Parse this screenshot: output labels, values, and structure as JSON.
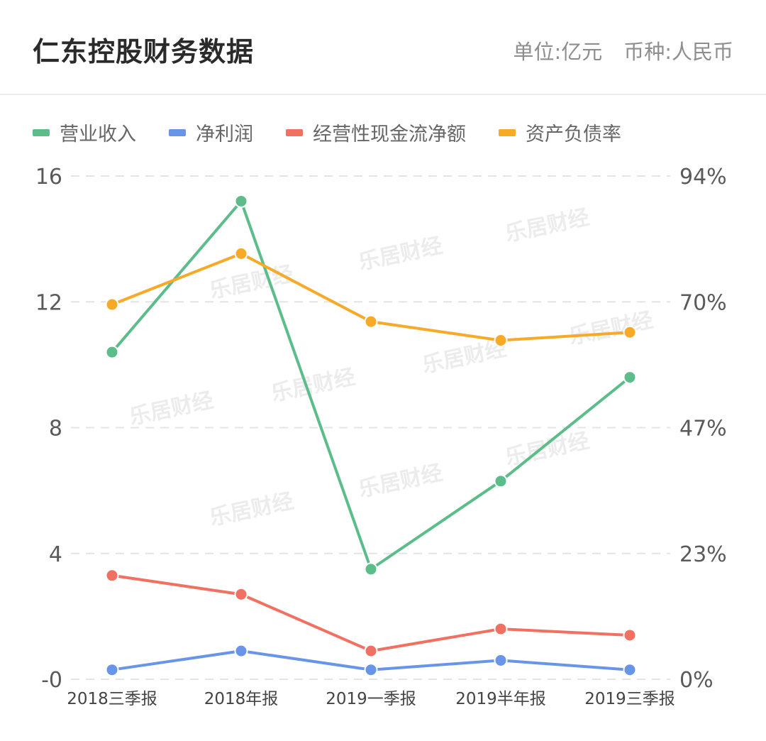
{
  "header": {
    "title": "仁东控股财务数据",
    "unit": "单位:亿元",
    "currency": "币种:人民币"
  },
  "watermark_text": "乐居财经",
  "chart_data": {
    "type": "line",
    "categories": [
      "2018三季报",
      "2018年报",
      "2019一季报",
      "2019半年报",
      "2019三季报"
    ],
    "y_left": {
      "ticks": [
        "-0",
        "4",
        "8",
        "12",
        "16"
      ],
      "ylim": [
        0,
        16
      ]
    },
    "y_right": {
      "ticks": [
        "0%",
        "23%",
        "47%",
        "70%",
        "94%"
      ],
      "ylim": [
        0,
        94
      ]
    },
    "grid": true,
    "legend_position": "top-left",
    "series": [
      {
        "name": "营业收入",
        "color": "#5cbd8a",
        "axis": "left",
        "values": [
          10.4,
          15.2,
          3.5,
          6.3,
          9.6
        ]
      },
      {
        "name": "净利润",
        "color": "#6995e8",
        "axis": "left",
        "values": [
          0.3,
          0.9,
          0.3,
          0.6,
          0.3
        ]
      },
      {
        "name": "经营性现金流净额",
        "color": "#f07162",
        "axis": "left",
        "values": [
          3.3,
          2.7,
          0.9,
          1.6,
          1.4
        ]
      },
      {
        "name": "资产负债率",
        "color": "#f7a928",
        "axis": "right",
        "values": [
          70.0,
          79.5,
          66.8,
          63.3,
          64.8
        ]
      }
    ]
  }
}
